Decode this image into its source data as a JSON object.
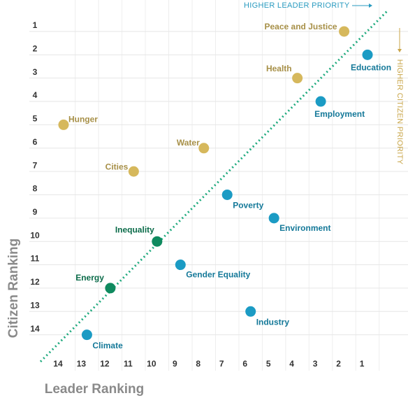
{
  "chart_data": {
    "type": "scatter",
    "x_label": "Leader Ranking",
    "y_label": "Citizen Ranking",
    "annotations": [
      "HIGHER LEADER PRIORITY",
      "HIGHER CITIZEN PRIORITY"
    ],
    "labels": [
      "Peace and Justice",
      "Education",
      "Health",
      "Employment",
      "Hunger",
      "Water",
      "Cities",
      "Poverty",
      "Environment",
      "Inequality",
      "Gender Equality",
      "Energy",
      "Industry",
      "Climate"
    ],
    "x": [
      2,
      1,
      4,
      3,
      14,
      8,
      11,
      7,
      5,
      10,
      9,
      12,
      6,
      13
    ],
    "values": [
      1,
      2,
      3,
      4,
      5,
      6,
      7,
      8,
      9,
      10,
      11,
      12,
      13,
      14
    ],
    "colors": [
      "#d6b85c",
      "#1b9bc4",
      "#d6b85c",
      "#1b9bc4",
      "#d6b85c",
      "#d6b85c",
      "#d6b85c",
      "#1b9bc4",
      "#1b9bc4",
      "#0f8a5f",
      "#1b9bc4",
      "#0f8a5f",
      "#1b9bc4",
      "#1b9bc4"
    ],
    "xlim": [
      15,
      0
    ],
    "ylim": [
      0,
      15
    ],
    "xticks": [
      14,
      13,
      12,
      11,
      10,
      9,
      8,
      7,
      6,
      5,
      4,
      3,
      2,
      1
    ],
    "yticks": [
      1,
      2,
      3,
      4,
      5,
      6,
      7,
      8,
      9,
      10,
      11,
      12,
      13,
      14
    ],
    "grid": true
  }
}
